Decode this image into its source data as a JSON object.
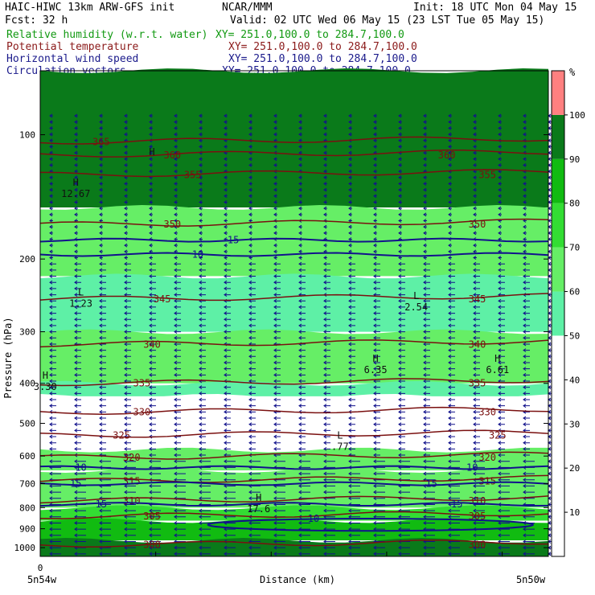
{
  "header": {
    "title_left": "HAIC-HIWC 13km ARW-GFS init",
    "org": "NCAR/MMM",
    "init": "Init: 18 UTC Mon 04 May 15",
    "fcst": "Fcst:   32 h",
    "valid": "Valid: 02 UTC Wed 06 May 15 (23 LST Tue 05 May 15)",
    "fields": [
      {
        "name": "Relative humidity (w.r.t. water)",
        "xy": "XY= 251.0,100.0 to 284.7,100.0",
        "color": "#119911"
      },
      {
        "name": "Potential temperature",
        "xy": "XY= 251.0,100.0 to 284.7,100.0",
        "color": "#8b1a1a"
      },
      {
        "name": "Horizontal wind speed",
        "xy": "XY= 251.0,100.0 to 284.7,100.0",
        "color": "#1a1a8b"
      },
      {
        "name": "Circulation vectors",
        "xy": "XY= 251.0,100.0 to 284.7,100.0",
        "color": "#1a1a8b"
      }
    ]
  },
  "colors": {
    "theta": "#7a1010",
    "wind": "#12128c",
    "vector": "#12128c",
    "top_band": "#7a1010"
  },
  "chart_data": {
    "type": "heatmap",
    "xlabel": "Distance (km)",
    "ylabel": "Pressure (hPa)",
    "x_ticks": [
      {
        "x": 0,
        "label": "0"
      }
    ],
    "x_end_labels": [
      "5n54w",
      "5n50w"
    ],
    "y_scale": "log",
    "ylim": [
      1050,
      70
    ],
    "y_ticks": [
      100,
      200,
      300,
      400,
      500,
      600,
      700,
      800,
      900,
      1000
    ],
    "colorbar": {
      "unit": "%",
      "levels": [
        10,
        20,
        30,
        40,
        50,
        60,
        70,
        80,
        90,
        100
      ],
      "bands": [
        {
          "from": 0,
          "to": 50,
          "color": "#ffffff"
        },
        {
          "from": 50,
          "to": 60,
          "color": "#5ef0a6"
        },
        {
          "from": 60,
          "to": 70,
          "color": "#66ee66"
        },
        {
          "from": 70,
          "to": 80,
          "color": "#33dd33"
        },
        {
          "from": 80,
          "to": 90,
          "color": "#11bb11"
        },
        {
          "from": 90,
          "to": 100,
          "color": "#0a7a1a"
        },
        {
          "from": 100,
          "to": 110,
          "color": "#ff8080"
        }
      ]
    },
    "rh_layers": [
      {
        "p_top": 70,
        "p_bot": 150,
        "rh": 92
      },
      {
        "p_top": 150,
        "p_bot": 220,
        "rh": 68
      },
      {
        "p_top": 220,
        "p_bot": 300,
        "rh": 55
      },
      {
        "p_top": 300,
        "p_bot": 400,
        "rh": 65
      },
      {
        "p_top": 400,
        "p_bot": 430,
        "rh": 55
      },
      {
        "p_top": 430,
        "p_bot": 580,
        "rh": 45
      },
      {
        "p_top": 580,
        "p_bot": 650,
        "rh": 68
      },
      {
        "p_top": 650,
        "p_bot": 800,
        "rh": 62
      },
      {
        "p_top": 800,
        "p_bot": 860,
        "rh": 78
      },
      {
        "p_top": 860,
        "p_bot": 960,
        "rh": 85
      },
      {
        "p_top": 960,
        "p_bot": 1050,
        "rh": 92
      }
    ],
    "theta_contours": [
      {
        "value": 300,
        "p": 985,
        "labels": [
          0.22,
          0.86
        ]
      },
      {
        "value": 305,
        "p": 840,
        "labels": [
          0.22,
          0.86
        ]
      },
      {
        "value": 310,
        "p": 770,
        "labels": [
          0.18,
          0.86
        ]
      },
      {
        "value": 315,
        "p": 690,
        "labels": [
          0.18,
          0.88
        ]
      },
      {
        "value": 320,
        "p": 605,
        "labels": [
          0.18,
          0.88
        ]
      },
      {
        "value": 325,
        "p": 535,
        "labels": [
          0.16,
          0.9
        ]
      },
      {
        "value": 330,
        "p": 470,
        "labels": [
          0.2,
          0.88
        ]
      },
      {
        "value": 335,
        "p": 400,
        "labels": [
          0.2,
          0.86
        ]
      },
      {
        "value": 340,
        "p": 322,
        "labels": [
          0.22,
          0.86
        ]
      },
      {
        "value": 345,
        "p": 250,
        "labels": [
          0.24,
          0.86
        ]
      },
      {
        "value": 350,
        "p": 165,
        "labels": [
          0.26,
          0.86
        ]
      },
      {
        "value": 355,
        "p": 125,
        "labels": [
          0.3,
          0.88
        ]
      },
      {
        "value": 360,
        "p": 112,
        "labels": [
          0.26,
          0.8
        ]
      },
      {
        "value": 365,
        "p": 104,
        "labels": [
          0.12
        ]
      }
    ],
    "wind_contours": [
      {
        "value": 10,
        "p": 195,
        "labels": [
          0.31
        ]
      },
      {
        "value": 15,
        "p": 180,
        "labels": [
          0.38
        ]
      },
      {
        "value": 10,
        "p": 640,
        "labels": [
          0.08,
          0.85
        ]
      },
      {
        "value": 15,
        "p": 700,
        "labels": [
          0.07,
          0.77
        ]
      },
      {
        "value": 15,
        "p": 785,
        "labels": [
          0.12,
          0.82
        ]
      }
    ],
    "wind_closed": {
      "value": 10,
      "x0": 0.33,
      "x1": 0.97,
      "p_mid": 880,
      "p_half": 30
    },
    "extrema": [
      {
        "kind": "H",
        "value": "12.67",
        "x": 0.07,
        "p": 133
      },
      {
        "kind": "H",
        "value": "",
        "x": 0.22,
        "p": 112
      },
      {
        "kind": "L",
        "value": "1.23",
        "x": 0.08,
        "p": 245
      },
      {
        "kind": "L",
        "value": "2.54",
        "x": 0.74,
        "p": 250
      },
      {
        "kind": "H",
        "value": "6.35",
        "x": 0.66,
        "p": 355
      },
      {
        "kind": "H",
        "value": "6.61",
        "x": 0.9,
        "p": 355
      },
      {
        "kind": "H",
        "value": "3.30",
        "x": 0.01,
        "p": 390
      },
      {
        "kind": "L",
        "value": ".77",
        "x": 0.59,
        "p": 545
      },
      {
        "kind": "H",
        "value": "17.6",
        "x": 0.43,
        "p": 770
      }
    ]
  }
}
